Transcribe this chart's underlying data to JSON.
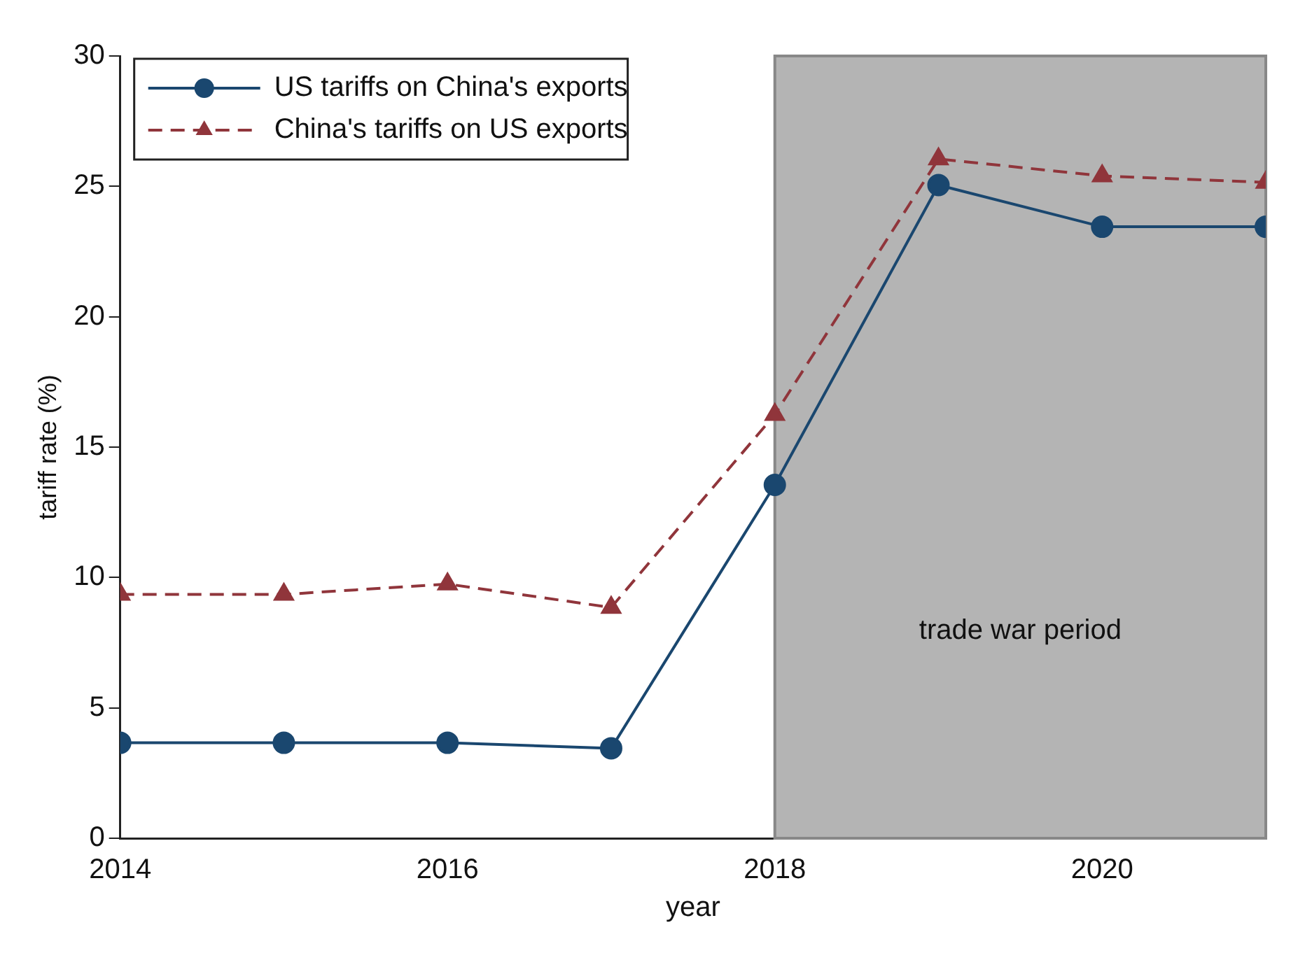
{
  "chart_data": {
    "type": "line",
    "xlabel": "year",
    "ylabel": "tariff rate (%)",
    "x": [
      2014,
      2015,
      2016,
      2017,
      2018,
      2019,
      2020,
      2021
    ],
    "series": [
      {
        "name": "US tariffs on China's exports",
        "color": "#1a476f",
        "marker": "circle",
        "line_style": "solid",
        "values": [
          3.66,
          3.66,
          3.66,
          3.45,
          13.55,
          25.05,
          23.45,
          23.45
        ]
      },
      {
        "name": "China's tariffs on US exports",
        "color": "#90353b",
        "marker": "triangle",
        "line_style": "dashed",
        "values": [
          9.35,
          9.35,
          9.75,
          8.85,
          16.25,
          26.05,
          25.4,
          25.15
        ]
      }
    ],
    "xlim": [
      2014,
      2021
    ],
    "xticks": [
      2014,
      2016,
      2018,
      2020
    ],
    "ylim": [
      0,
      30
    ],
    "yticks": [
      0,
      5,
      10,
      15,
      20,
      25,
      30
    ],
    "bands": [
      {
        "axis": "x",
        "from": 2018,
        "to": 2021,
        "label": "trade war period",
        "color": "#b4b4b4"
      }
    ],
    "grid": false,
    "legend": "top left"
  }
}
